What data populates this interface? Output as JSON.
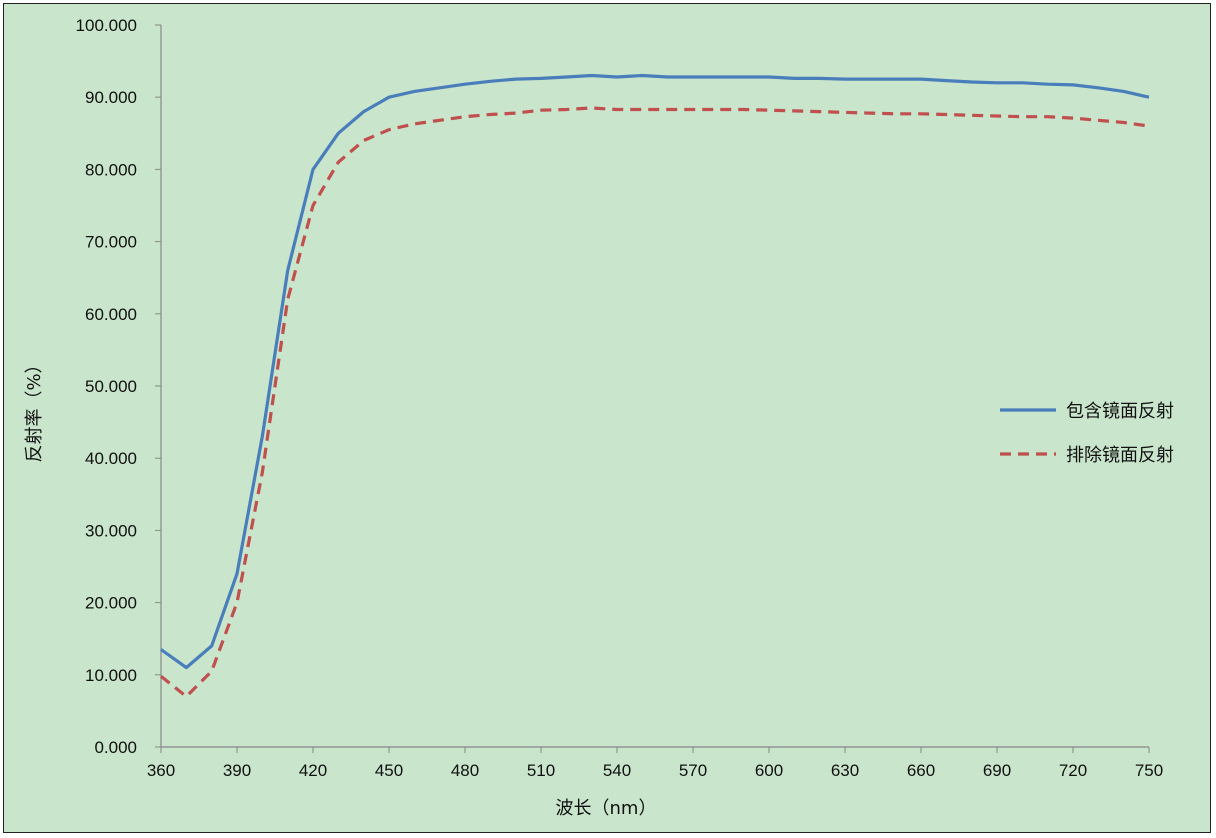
{
  "chart_data": {
    "type": "line",
    "title": "",
    "xlabel": "波长（nm）",
    "ylabel": "反射率（%）",
    "xlim": [
      360,
      750
    ],
    "ylim": [
      0,
      100
    ],
    "x_ticks": [
      "360",
      "390",
      "420",
      "450",
      "480",
      "510",
      "540",
      "570",
      "600",
      "630",
      "660",
      "690",
      "720",
      "750"
    ],
    "y_ticks": [
      "0.000",
      "10.000",
      "20.000",
      "30.000",
      "40.000",
      "50.000",
      "60.000",
      "70.000",
      "80.000",
      "90.000",
      "100.000"
    ],
    "legend_position": "right",
    "grid": false,
    "x": [
      360,
      370,
      380,
      390,
      400,
      410,
      420,
      430,
      440,
      450,
      460,
      470,
      480,
      490,
      500,
      510,
      520,
      530,
      540,
      550,
      560,
      570,
      580,
      590,
      600,
      610,
      620,
      630,
      640,
      650,
      660,
      670,
      680,
      690,
      700,
      710,
      720,
      730,
      740,
      750
    ],
    "series": [
      {
        "name": "包含镜面反射",
        "color": "#4a7ebb",
        "style": "solid",
        "values": [
          13.5,
          11.0,
          14.0,
          24.0,
          43.0,
          66.0,
          80.0,
          85.0,
          88.0,
          90.0,
          90.8,
          91.3,
          91.8,
          92.2,
          92.5,
          92.6,
          92.8,
          93.0,
          92.8,
          93.0,
          92.8,
          92.8,
          92.8,
          92.8,
          92.8,
          92.6,
          92.6,
          92.5,
          92.5,
          92.5,
          92.5,
          92.3,
          92.1,
          92.0,
          92.0,
          91.8,
          91.7,
          91.3,
          90.8,
          90.0
        ]
      },
      {
        "name": "排除镜面反射",
        "color": "#c0504d",
        "style": "dashed",
        "values": [
          9.8,
          7.0,
          10.5,
          20.0,
          38.0,
          62.0,
          75.0,
          81.0,
          84.0,
          85.5,
          86.3,
          86.8,
          87.3,
          87.6,
          87.8,
          88.2,
          88.3,
          88.5,
          88.3,
          88.3,
          88.3,
          88.3,
          88.3,
          88.3,
          88.2,
          88.1,
          88.0,
          87.9,
          87.8,
          87.7,
          87.7,
          87.6,
          87.5,
          87.4,
          87.3,
          87.3,
          87.1,
          86.8,
          86.5,
          86.0
        ]
      }
    ]
  }
}
